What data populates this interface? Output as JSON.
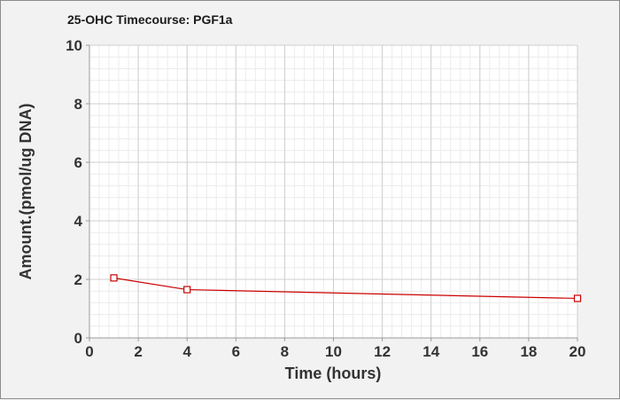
{
  "chart_data": {
    "type": "line",
    "title": "25-OHC Timecourse: PGF1a",
    "xlabel": "Time (hours)",
    "ylabel": "Amount.(pmol/ug DNA)",
    "xlim": [
      0,
      20
    ],
    "ylim": [
      0,
      10
    ],
    "xticks": [
      "0",
      "2",
      "4",
      "6",
      "8",
      "10",
      "12",
      "14",
      "16",
      "18",
      "20"
    ],
    "yticks": [
      "0",
      "2",
      "4",
      "6",
      "8",
      "10"
    ],
    "grid": true,
    "legend": "none",
    "series": [
      {
        "color": "#cc0000",
        "marker": "open-square",
        "x": [
          1,
          4,
          20
        ],
        "y": [
          2.05,
          1.65,
          1.35
        ]
      }
    ]
  }
}
